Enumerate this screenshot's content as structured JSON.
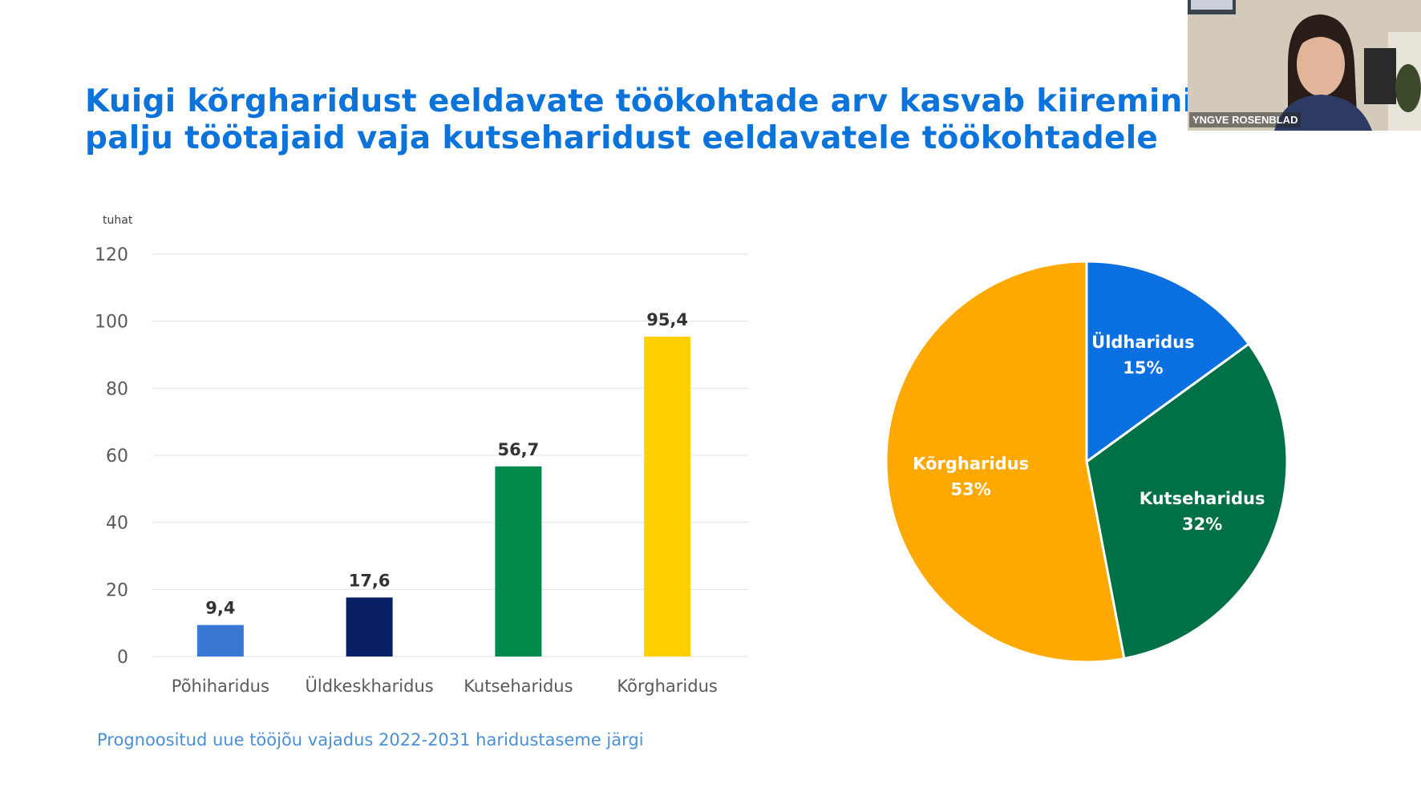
{
  "slide": {
    "title_line1": "Kuigi kõrgharidust eeldavate töökohtade arv kasvab kiiremini, s",
    "title_line2": "palju töötajaid vaja kutseharidust eeldavatele töökohtadele",
    "caption": "Prognoositud uue tööjõu vajadus 2022-2031 haridustaseme järgi"
  },
  "webcam": {
    "participant_name": "YNGVE ROSENBLAD"
  },
  "colors": {
    "title": "#0b73d9",
    "caption": "#4a8fd8",
    "gridline": "#e3e3e3",
    "axis_text": "#595959"
  },
  "chart_data": [
    {
      "type": "bar",
      "unit_label": "tuhat",
      "categories": [
        "Põhiharidus",
        "Üldkeskharidus",
        "Kutseharidus",
        "Kõrgharidus"
      ],
      "values": [
        9.4,
        17.6,
        56.7,
        95.4
      ],
      "data_labels": [
        "9,4",
        "17,6",
        "56,7",
        "95,4"
      ],
      "colors": [
        "#3a78d6",
        "#0b1f66",
        "#00894a",
        "#ffcf00"
      ],
      "ylim": [
        0,
        120
      ],
      "yticks": [
        0,
        20,
        40,
        60,
        80,
        100,
        120
      ],
      "grid": true,
      "xlabel": "",
      "ylabel": ""
    },
    {
      "type": "pie",
      "start_angle_deg": 0,
      "direction": "clockwise",
      "slices": [
        {
          "label": "Üldharidus",
          "percent_label": "15%",
          "value": 15,
          "color": "#0a6fe0"
        },
        {
          "label": "Kutseharidus",
          "percent_label": "32%",
          "value": 32,
          "color": "#007046"
        },
        {
          "label": "Kõrgharidus",
          "percent_label": "53%",
          "value": 53,
          "color": "#ffa900"
        }
      ]
    }
  ]
}
